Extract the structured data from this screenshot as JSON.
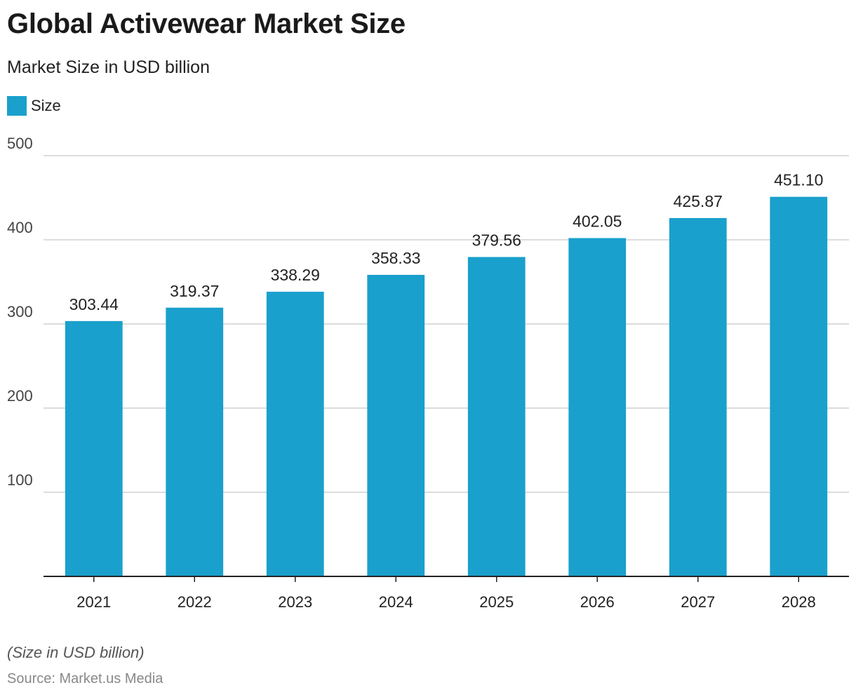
{
  "chart_data": {
    "type": "bar",
    "title": "Global Activewear Market Size",
    "subtitle": "Market Size in USD billion",
    "legend": {
      "label": "Size",
      "color": "#1aa0cc",
      "position": "top-left"
    },
    "categories": [
      "2021",
      "2022",
      "2023",
      "2024",
      "2025",
      "2026",
      "2027",
      "2028"
    ],
    "series": [
      {
        "name": "Size",
        "values": [
          303.44,
          319.37,
          338.29,
          358.33,
          379.56,
          402.05,
          425.87,
          451.1
        ]
      }
    ],
    "data_labels": [
      "303.44",
      "319.37",
      "338.29",
      "358.33",
      "379.56",
      "402.05",
      "425.87",
      "451.10"
    ],
    "ylim": [
      0,
      500
    ],
    "yticks": [
      "100",
      "200",
      "300",
      "400",
      "500"
    ],
    "xlabel": "",
    "ylabel": "",
    "grid": true
  },
  "footer": {
    "note": "(Size in USD billion)",
    "source": "Source: Market.us Media"
  },
  "colors": {
    "bar": "#1aa0cc",
    "grid": "#d0d0d0",
    "axis": "#222222"
  }
}
